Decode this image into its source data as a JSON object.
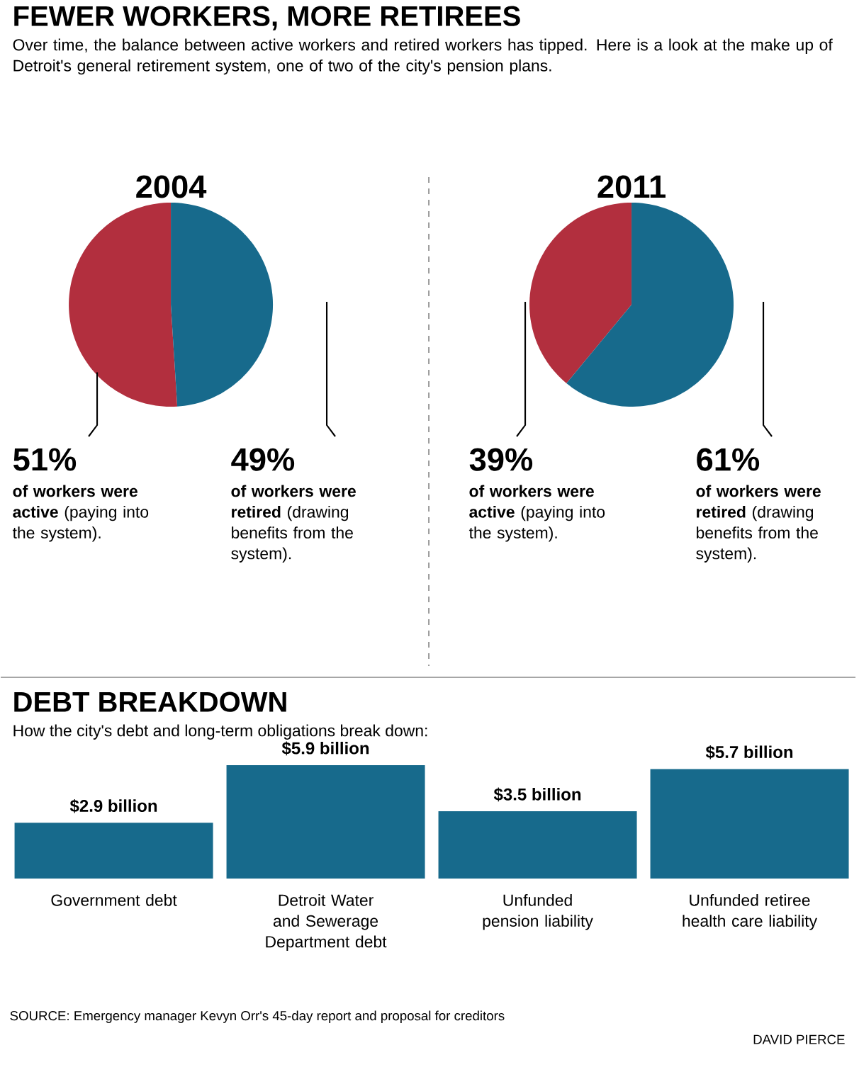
{
  "chart_data": [
    {
      "type": "other",
      "title": "FEWER WORKERS, MORE RETIREES",
      "subtitle": "Over time, the balance between active workers and retired workers has tipped. Here is a look at the make up of Detroit's general retirement system, one of two of the city's pension plans."
    },
    {
      "type": "pie",
      "title": "2004",
      "categories": [
        "**of workers were active** (paying into the system).",
        "**of workers were retired** (drawing benefits from the system)."
      ],
      "values": [
        51,
        49
      ],
      "value_labels": [
        "51%",
        "49%"
      ],
      "colors": [
        "#b22f3e",
        "#176a8c"
      ]
    },
    {
      "type": "pie",
      "title": "2011",
      "categories": [
        "**of workers were active** (paying into the system).",
        "**of workers were retired** (drawing benefits from the system)."
      ],
      "values": [
        39,
        61
      ],
      "value_labels": [
        "39%",
        "61%"
      ],
      "colors": [
        "#b22f3e",
        "#176a8c"
      ]
    },
    {
      "type": "bar",
      "title": "DEBT BREAKDOWN",
      "subtitle": "How the city's debt and long-term obligations break down:",
      "categories": [
        "Government debt",
        "Detroit Water and Sewerage Department debt",
        "Unfunded pension liability",
        "Unfunded retiree health care liability"
      ],
      "values": [
        2.9,
        5.9,
        3.5,
        5.7
      ],
      "value_labels": [
        "$2.9 billion",
        "$5.9 billion",
        "$3.5 billion",
        "$5.7 billion"
      ],
      "color": "#176a8c",
      "annotations": [
        "SOURCE: Emergency manager Kevyn Orr's 45-day report and proposal for creditors",
        "DAVID PIERCE"
      ]
    }
  ]
}
